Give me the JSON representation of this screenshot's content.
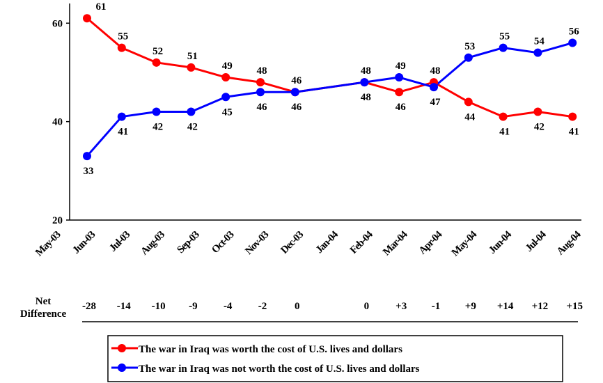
{
  "chart_data": {
    "type": "line",
    "categories": [
      "May-03",
      "Jun-03",
      "Jul-03",
      "Aug-03",
      "Sep-03",
      "Oct-03",
      "Nov-03",
      "Dec-03",
      "Jan-04",
      "Feb-04",
      "Mar-04",
      "Apr-04",
      "May-04",
      "Jun-04",
      "Jul-04",
      "Aug-04"
    ],
    "series": [
      {
        "name": "The war in Iraq was worth the cost of U.S. lives and dollars",
        "color": "#ff0000",
        "values": [
          null,
          61,
          55,
          52,
          51,
          49,
          48,
          46,
          null,
          48,
          46,
          48,
          44,
          41,
          42,
          41
        ]
      },
      {
        "name": "The war in Iraq was not worth the cost of U.S. lives and dollars",
        "color": "#0000ff",
        "values": [
          null,
          33,
          41,
          42,
          42,
          45,
          46,
          46,
          null,
          48,
          49,
          47,
          53,
          55,
          54,
          56
        ]
      }
    ],
    "ylim": [
      20,
      64
    ],
    "yticks": [
      20,
      40,
      60
    ],
    "span_gaps": true,
    "net_difference": {
      "label_lines": [
        "Net",
        "Difference"
      ],
      "values": [
        null,
        "-28",
        "-14",
        "-10",
        "-9",
        "-4",
        "-2",
        "0",
        null,
        "0",
        "+3",
        "-1",
        "+9",
        "+14",
        "+12",
        "+15"
      ]
    }
  }
}
